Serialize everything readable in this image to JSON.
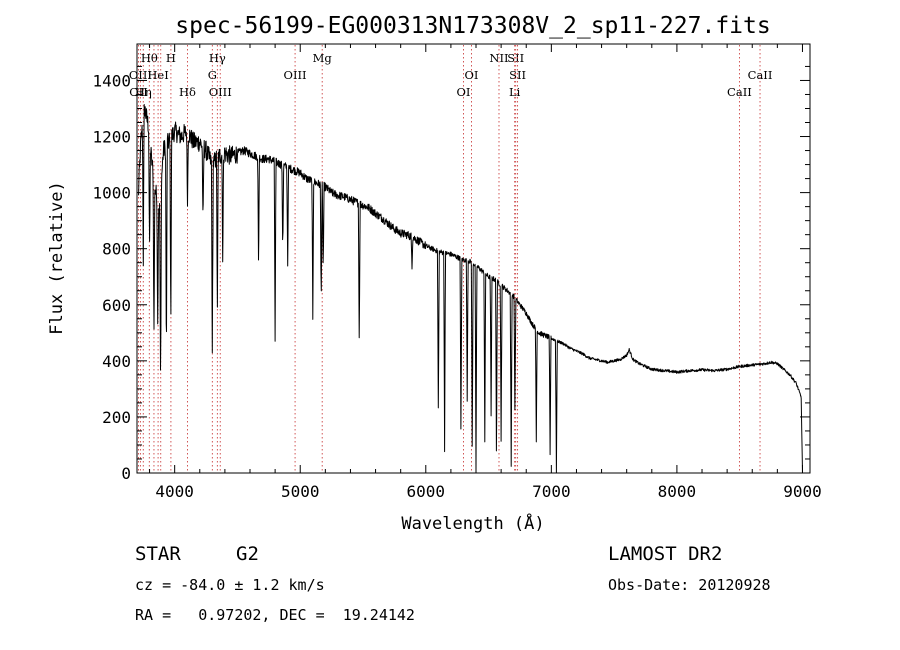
{
  "chart_data": {
    "type": "line",
    "title": "spec-56199-EG000313N173308V_2_sp11-227.fits",
    "xlabel": "Wavelength (Å)",
    "ylabel": "Flux (relative)",
    "xlim": [
      3700,
      9060
    ],
    "ylim": [
      0,
      1530
    ],
    "xticks": [
      4000,
      5000,
      6000,
      7000,
      8000,
      9000
    ],
    "yticks": [
      0,
      200,
      400,
      600,
      800,
      1000,
      1200,
      1400
    ],
    "grid": false,
    "line_color": "#000000",
    "marker_color": "#cc4444",
    "continuum": [
      [
        3710,
        980
      ],
      [
        3730,
        1180
      ],
      [
        3760,
        1300
      ],
      [
        3790,
        1240
      ],
      [
        3820,
        1100
      ],
      [
        3850,
        1000
      ],
      [
        3880,
        940
      ],
      [
        3910,
        1150
      ],
      [
        3950,
        1180
      ],
      [
        4000,
        1220
      ],
      [
        4050,
        1200
      ],
      [
        4100,
        1220
      ],
      [
        4150,
        1180
      ],
      [
        4200,
        1180
      ],
      [
        4250,
        1150
      ],
      [
        4300,
        1100
      ],
      [
        4350,
        1130
      ],
      [
        4400,
        1140
      ],
      [
        4450,
        1130
      ],
      [
        4500,
        1140
      ],
      [
        4550,
        1150
      ],
      [
        4600,
        1140
      ],
      [
        4650,
        1130
      ],
      [
        4700,
        1120
      ],
      [
        4750,
        1120
      ],
      [
        4800,
        1110
      ],
      [
        4850,
        1100
      ],
      [
        4900,
        1090
      ],
      [
        4950,
        1080
      ],
      [
        5000,
        1070
      ],
      [
        5050,
        1050
      ],
      [
        5100,
        1040
      ],
      [
        5150,
        1030
      ],
      [
        5200,
        1020
      ],
      [
        5250,
        1000
      ],
      [
        5300,
        990
      ],
      [
        5350,
        985
      ],
      [
        5400,
        975
      ],
      [
        5450,
        965
      ],
      [
        5500,
        955
      ],
      [
        5550,
        945
      ],
      [
        5600,
        925
      ],
      [
        5650,
        910
      ],
      [
        5700,
        890
      ],
      [
        5750,
        870
      ],
      [
        5800,
        855
      ],
      [
        5850,
        850
      ],
      [
        5900,
        840
      ],
      [
        5950,
        825
      ],
      [
        6000,
        810
      ],
      [
        6050,
        800
      ],
      [
        6100,
        790
      ],
      [
        6150,
        785
      ],
      [
        6200,
        780
      ],
      [
        6250,
        770
      ],
      [
        6300,
        760
      ],
      [
        6350,
        755
      ],
      [
        6400,
        740
      ],
      [
        6450,
        720
      ],
      [
        6500,
        700
      ],
      [
        6550,
        690
      ],
      [
        6600,
        670
      ],
      [
        6650,
        650
      ],
      [
        6700,
        630
      ],
      [
        6750,
        600
      ],
      [
        6800,
        570
      ],
      [
        6850,
        530
      ],
      [
        6900,
        500
      ],
      [
        6950,
        490
      ],
      [
        7000,
        480
      ],
      [
        7050,
        470
      ],
      [
        7100,
        460
      ],
      [
        7150,
        445
      ],
      [
        7200,
        435
      ],
      [
        7250,
        425
      ],
      [
        7300,
        410
      ],
      [
        7350,
        405
      ],
      [
        7400,
        400
      ],
      [
        7450,
        395
      ],
      [
        7500,
        400
      ],
      [
        7550,
        405
      ],
      [
        7600,
        420
      ],
      [
        7620,
        440
      ],
      [
        7650,
        405
      ],
      [
        7700,
        390
      ],
      [
        7800,
        370
      ],
      [
        7900,
        365
      ],
      [
        8000,
        360
      ],
      [
        8100,
        365
      ],
      [
        8200,
        368
      ],
      [
        8300,
        365
      ],
      [
        8400,
        370
      ],
      [
        8500,
        380
      ],
      [
        8600,
        385
      ],
      [
        8700,
        390
      ],
      [
        8750,
        395
      ],
      [
        8800,
        390
      ],
      [
        8850,
        370
      ],
      [
        8900,
        350
      ],
      [
        8950,
        320
      ],
      [
        8990,
        270
      ],
      [
        9000,
        0
      ]
    ],
    "absorption_lines": [
      {
        "x": 3750,
        "depth": 500
      },
      {
        "x": 3800,
        "depth": 400
      },
      {
        "x": 3835,
        "depth": 550
      },
      {
        "x": 3865,
        "depth": 450
      },
      {
        "x": 3888,
        "depth": 700
      },
      {
        "x": 3934,
        "depth": 800
      },
      {
        "x": 3969,
        "depth": 700
      },
      {
        "x": 4102,
        "depth": 250
      },
      {
        "x": 4226,
        "depth": 300
      },
      {
        "x": 4300,
        "depth": 700
      },
      {
        "x": 4340,
        "depth": 520
      },
      {
        "x": 4383,
        "depth": 400
      },
      {
        "x": 4668,
        "depth": 400
      },
      {
        "x": 4800,
        "depth": 650
      },
      {
        "x": 4861,
        "depth": 300
      },
      {
        "x": 4900,
        "depth": 350
      },
      {
        "x": 5100,
        "depth": 500
      },
      {
        "x": 5167,
        "depth": 400
      },
      {
        "x": 5183,
        "depth": 300
      },
      {
        "x": 5470,
        "depth": 480
      },
      {
        "x": 5890,
        "depth": 100
      },
      {
        "x": 6100,
        "depth": 560
      },
      {
        "x": 6150,
        "depth": 700
      },
      {
        "x": 6280,
        "depth": 600
      },
      {
        "x": 6330,
        "depth": 500
      },
      {
        "x": 6370,
        "depth": 650
      },
      {
        "x": 6400,
        "depth": 750
      },
      {
        "x": 6470,
        "depth": 600
      },
      {
        "x": 6520,
        "depth": 500
      },
      {
        "x": 6563,
        "depth": 650
      },
      {
        "x": 6600,
        "depth": 550
      },
      {
        "x": 6680,
        "depth": 620
      },
      {
        "x": 6710,
        "depth": 400
      },
      {
        "x": 6880,
        "depth": 400
      },
      {
        "x": 6990,
        "depth": 420
      },
      {
        "x": 7040,
        "depth": 470
      }
    ],
    "line_markers": [
      {
        "x": 3712,
        "label": "OII",
        "row": 2
      },
      {
        "x": 3727,
        "label": "OIII",
        "row": 1
      },
      {
        "x": 3750,
        "label": "Hη",
        "row": 2
      },
      {
        "x": 3798,
        "label": "Hθ",
        "row": 0
      },
      {
        "x": 3835,
        "label": "",
        "row": 0
      },
      {
        "x": 3868,
        "label": "HeI",
        "row": 1
      },
      {
        "x": 3889,
        "label": "",
        "row": 0
      },
      {
        "x": 3970,
        "label": "H",
        "row": 0
      },
      {
        "x": 4102,
        "label": "Hδ",
        "row": 2
      },
      {
        "x": 4300,
        "label": "G",
        "row": 1
      },
      {
        "x": 4340,
        "label": "Hγ",
        "row": 0
      },
      {
        "x": 4363,
        "label": "OIII",
        "row": 2
      },
      {
        "x": 4959,
        "label": "OIII",
        "row": 1
      },
      {
        "x": 5175,
        "label": "Mg",
        "row": 0
      },
      {
        "x": 6300,
        "label": "OI",
        "row": 2
      },
      {
        "x": 6364,
        "label": "OI",
        "row": 1
      },
      {
        "x": 6583,
        "label": "NII",
        "row": 0
      },
      {
        "x": 6716,
        "label": "SII",
        "row": 0
      },
      {
        "x": 6731,
        "label": "SII",
        "row": 1
      },
      {
        "x": 6708,
        "label": "Li",
        "row": 2
      },
      {
        "x": 8498,
        "label": "CaII",
        "row": 2
      },
      {
        "x": 8662,
        "label": "CaII",
        "row": 1
      }
    ]
  },
  "info": {
    "object_class": "STAR",
    "subclass": "G2",
    "survey": "LAMOST DR2",
    "cz": "cz = -84.0 ± 1.2 km/s",
    "obs_date": "Obs-Date: 20120928",
    "coords": "RA =   0.97202, DEC =  19.24142"
  }
}
